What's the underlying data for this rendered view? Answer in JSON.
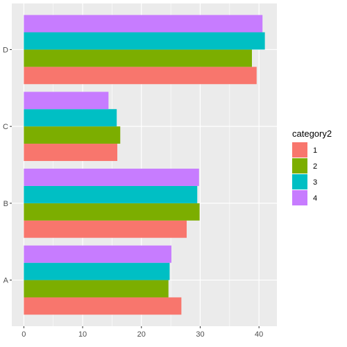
{
  "chart_data": {
    "type": "bar",
    "orientation": "horizontal",
    "position": "dodge",
    "categories": [
      "A",
      "B",
      "C",
      "D"
    ],
    "series": [
      {
        "name": "1",
        "color": "#F8766D",
        "values": [
          26.8,
          27.7,
          15.9,
          39.6
        ]
      },
      {
        "name": "2",
        "color": "#7CAE00",
        "values": [
          24.6,
          29.9,
          16.4,
          38.8
        ]
      },
      {
        "name": "3",
        "color": "#00BFC4",
        "values": [
          24.8,
          29.5,
          15.8,
          41.0
        ]
      },
      {
        "name": "4",
        "color": "#C77CFF",
        "values": [
          25.1,
          29.8,
          14.4,
          40.6
        ]
      }
    ],
    "x_ticks": [
      "0",
      "10",
      "20",
      "30",
      "40"
    ],
    "xlim": [
      -2.05,
      43.05
    ],
    "legend_title": "category2",
    "legend_position": "right",
    "panel_background": "#EBEBEB",
    "grid": true
  }
}
